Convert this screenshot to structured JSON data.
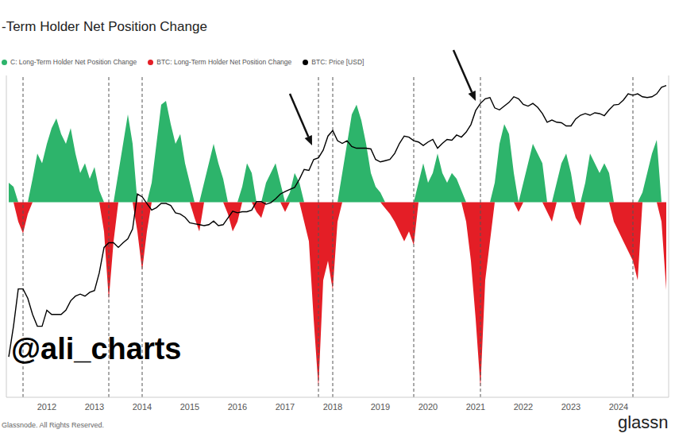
{
  "chart_data": {
    "type": "area",
    "title": "-Term Holder Net Position Change",
    "watermark": "@ali_charts",
    "source": "Glassnode. All Rights Reserved.",
    "logo": "glassn",
    "x": [
      2011.2,
      2011.3,
      2011.4,
      2011.5,
      2011.6,
      2011.7,
      2011.8,
      2011.9,
      2012.0,
      2012.1,
      2012.2,
      2012.3,
      2012.4,
      2012.5,
      2012.6,
      2012.7,
      2012.8,
      2012.9,
      2013.0,
      2013.1,
      2013.2,
      2013.3,
      2013.4,
      2013.5,
      2013.6,
      2013.7,
      2013.8,
      2013.9,
      2014.0,
      2014.1,
      2014.2,
      2014.3,
      2014.4,
      2014.5,
      2014.6,
      2014.7,
      2014.8,
      2014.9,
      2015.0,
      2015.1,
      2015.2,
      2015.3,
      2015.4,
      2015.5,
      2015.6,
      2015.7,
      2015.8,
      2015.9,
      2016.0,
      2016.1,
      2016.2,
      2016.3,
      2016.4,
      2016.5,
      2016.6,
      2016.7,
      2016.8,
      2016.9,
      2017.0,
      2017.1,
      2017.2,
      2017.3,
      2017.4,
      2017.5,
      2017.6,
      2017.7,
      2017.8,
      2017.9,
      2018.0,
      2018.1,
      2018.2,
      2018.3,
      2018.4,
      2018.5,
      2018.6,
      2018.7,
      2018.8,
      2018.9,
      2019.0,
      2019.1,
      2019.2,
      2019.3,
      2019.4,
      2019.5,
      2019.6,
      2019.7,
      2019.8,
      2019.9,
      2020.0,
      2020.1,
      2020.2,
      2020.3,
      2020.4,
      2020.5,
      2020.6,
      2020.7,
      2020.8,
      2020.9,
      2021.0,
      2021.1,
      2021.2,
      2021.3,
      2021.4,
      2021.5,
      2021.6,
      2021.7,
      2021.8,
      2021.9,
      2022.0,
      2022.1,
      2022.2,
      2022.3,
      2022.4,
      2022.5,
      2022.6,
      2022.7,
      2022.8,
      2022.9,
      2023.0,
      2023.1,
      2023.2,
      2023.3,
      2023.4,
      2023.5,
      2023.6,
      2023.7,
      2023.8,
      2023.9,
      2024.0,
      2024.1,
      2024.2,
      2024.3,
      2024.4,
      2024.5,
      2024.6,
      2024.7,
      2024.8,
      2024.9,
      2025.0
    ],
    "xlim": [
      2011.15,
      2025.05
    ],
    "xticks": [
      2012,
      2013,
      2014,
      2015,
      2016,
      2017,
      2018,
      2019,
      2020,
      2021,
      2022,
      2023,
      2024
    ],
    "ylim": [
      0.14,
      150000
    ],
    "log": "y",
    "y2lim": [
      -1000000,
      650000
    ],
    "tick_labels": "x",
    "grid": false,
    "reference_lines": [
      2011.5,
      2013.3,
      2014.0,
      2017.7,
      2018.0,
      2019.7,
      2021.1,
      2024.3
    ],
    "series": [
      {
        "name": "C: Long-Term Holder Net Position Change",
        "color": "#2db46b",
        "type": "area",
        "axis": "y2",
        "values": [
          100000,
          80000,
          0,
          0,
          0,
          120000,
          250000,
          200000,
          300000,
          380000,
          430000,
          350000,
          300000,
          380000,
          250000,
          150000,
          200000,
          120000,
          180000,
          60000,
          0,
          0,
          0,
          150000,
          300000,
          450000,
          300000,
          0,
          0,
          0,
          100000,
          300000,
          500000,
          520000,
          400000,
          300000,
          350000,
          200000,
          100000,
          0,
          0,
          100000,
          200000,
          300000,
          200000,
          120000,
          0,
          0,
          0,
          80000,
          200000,
          150000,
          0,
          0,
          100000,
          150000,
          200000,
          100000,
          0,
          50000,
          150000,
          100000,
          0,
          0,
          0,
          0,
          0,
          0,
          0,
          0,
          150000,
          300000,
          450000,
          500000,
          420000,
          300000,
          150000,
          80000,
          50000,
          0,
          0,
          0,
          0,
          0,
          0,
          0,
          100000,
          200000,
          100000,
          150000,
          250000,
          150000,
          100000,
          150000,
          120000,
          60000,
          0,
          0,
          0,
          0,
          0,
          0,
          100000,
          300000,
          400000,
          350000,
          150000,
          0,
          100000,
          200000,
          300000,
          250000,
          200000,
          0,
          0,
          100000,
          200000,
          250000,
          150000,
          0,
          0,
          100000,
          250000,
          200000,
          150000,
          200000,
          150000,
          0,
          0,
          0,
          0,
          0,
          0,
          50000,
          150000,
          250000,
          320000,
          0,
          0
        ]
      },
      {
        "name": "BTC: Long-Term Holder Net Position Change",
        "color": "#e41e26",
        "type": "area",
        "axis": "y2",
        "values": [
          0,
          0,
          -100000,
          -160000,
          -60000,
          0,
          0,
          0,
          0,
          0,
          0,
          0,
          0,
          0,
          0,
          0,
          0,
          0,
          0,
          0,
          -150000,
          -500000,
          -200000,
          0,
          0,
          0,
          0,
          -150000,
          -350000,
          -150000,
          0,
          0,
          0,
          0,
          0,
          0,
          0,
          0,
          0,
          -80000,
          -150000,
          0,
          0,
          0,
          0,
          0,
          -60000,
          -150000,
          -100000,
          0,
          0,
          0,
          -50000,
          -80000,
          0,
          0,
          0,
          0,
          -50000,
          0,
          0,
          0,
          -100000,
          -200000,
          -600000,
          -950000,
          -400000,
          -300000,
          -450000,
          -100000,
          0,
          0,
          0,
          0,
          0,
          0,
          0,
          0,
          0,
          -30000,
          -60000,
          -100000,
          -150000,
          -200000,
          -150000,
          -220000,
          0,
          0,
          0,
          0,
          0,
          0,
          0,
          0,
          0,
          0,
          -100000,
          -300000,
          -600000,
          -950000,
          -400000,
          -200000,
          0,
          0,
          0,
          0,
          0,
          -50000,
          0,
          0,
          0,
          0,
          0,
          -50000,
          -100000,
          0,
          0,
          0,
          0,
          -80000,
          -120000,
          0,
          0,
          0,
          0,
          0,
          0,
          -100000,
          -150000,
          -200000,
          -250000,
          -300000,
          -400000,
          0,
          0,
          0,
          0,
          -100000,
          -450000
        ]
      },
      {
        "name": "BTC: Price [USD]",
        "color": "#000000",
        "type": "line",
        "values": [
          0.8,
          3,
          15,
          15,
          10,
          5,
          3,
          3,
          6,
          5,
          5,
          5,
          6,
          9,
          11,
          12,
          11,
          13,
          14,
          30,
          90,
          110,
          110,
          90,
          110,
          130,
          200,
          900,
          800,
          600,
          450,
          500,
          600,
          600,
          550,
          400,
          380,
          330,
          260,
          250,
          240,
          230,
          240,
          280,
          230,
          240,
          320,
          430,
          400,
          420,
          420,
          450,
          650,
          650,
          580,
          620,
          730,
          900,
          1000,
          1100,
          1200,
          1700,
          2600,
          2500,
          4000,
          4300,
          6000,
          11000,
          14000,
          9000,
          8000,
          9000,
          7000,
          6500,
          6500,
          6500,
          6300,
          4000,
          3600,
          3800,
          4000,
          5200,
          8000,
          11000,
          10500,
          9000,
          8500,
          7300,
          8500,
          9500,
          6500,
          8000,
          9500,
          9200,
          11500,
          10500,
          13000,
          18000,
          33000,
          45000,
          55000,
          58000,
          37000,
          34000,
          40000,
          47000,
          60000,
          55000,
          43000,
          40000,
          45000,
          38000,
          29000,
          20000,
          22000,
          20000,
          19500,
          17000,
          17000,
          23000,
          27000,
          29000,
          27000,
          30000,
          29000,
          26500,
          34000,
          42000,
          43000,
          52000,
          68000,
          64000,
          68000,
          60000,
          58000,
          60000,
          68000,
          90000,
          97000
        ]
      }
    ]
  }
}
